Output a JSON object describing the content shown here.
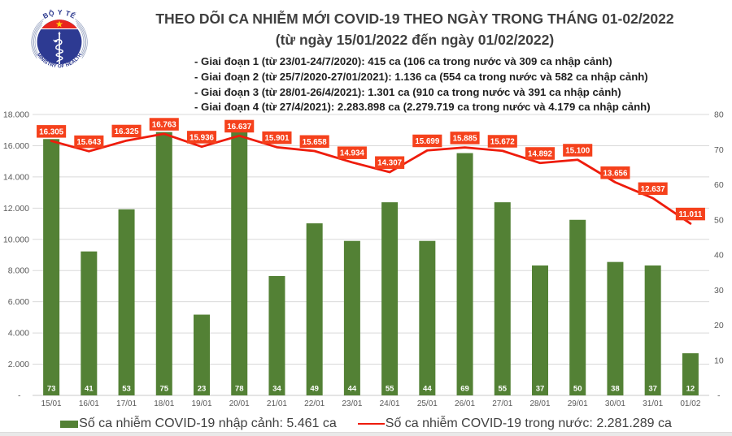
{
  "logo": {
    "top_text": "BỘ Y TẾ",
    "bottom_text": "MINISTRY OF HEALTH"
  },
  "header": {
    "title": "THEO DÕI CA NHIỄM MỚI COVID-19 THEO NGÀY TRONG THÁNG 01-02/2022",
    "subtitle": "(từ ngày 15/01/2022 đến ngày 01/02/2022)",
    "phases": [
      "- Giai đoạn 1 (từ 23/01-24/7/2020): 415 ca (106 ca trong nước và 309 ca nhập cảnh)",
      "- Giai đoạn 2 (từ 25/7/2020-27/01/2021): 1.136 ca (554 ca trong nước và 582 ca nhập cảnh)",
      "- Giai đoạn 3 (từ 28/01-26/4/2021): 1.301 ca (910 ca trong nước và 391 ca nhập cảnh)",
      "- Giai đoạn 4 (từ 27/4/2021): 2.283.898 ca (2.279.719 ca trong nước và 4.179 ca nhập cảnh)"
    ]
  },
  "chart_data": {
    "type": "bar",
    "subtype": "bar+line combo, dual axis",
    "categories": [
      "15/01",
      "16/01",
      "17/01",
      "18/01",
      "19/01",
      "20/01",
      "21/01",
      "22/01",
      "23/01",
      "24/01",
      "25/01",
      "26/01",
      "27/01",
      "28/01",
      "29/01",
      "30/01",
      "31/01",
      "01/02"
    ],
    "series": [
      {
        "name": "Số ca nhiễm COVID-19 nhập cảnh",
        "type": "bar",
        "axis": "right",
        "color": "#538135",
        "values": [
          73,
          41,
          53,
          75,
          23,
          78,
          34,
          49,
          44,
          55,
          44,
          69,
          55,
          37,
          50,
          38,
          37,
          12
        ],
        "value_labels": [
          "73",
          "41",
          "53",
          "75",
          "23",
          "78",
          "34",
          "49",
          "44",
          "55",
          "44",
          "69",
          "55",
          "37",
          "50",
          "38",
          "37",
          "12"
        ]
      },
      {
        "name": "Số ca nhiễm COVID-19 trong nước",
        "type": "line",
        "axis": "left",
        "color": "#ee1c0c",
        "values": [
          16305,
          15643,
          16325,
          16763,
          15936,
          16637,
          15901,
          15658,
          14934,
          14307,
          15699,
          15885,
          15672,
          14892,
          15100,
          13656,
          12637,
          11011
        ],
        "value_labels": [
          "16.305",
          "15.643",
          "16.325",
          "16.763",
          "15.936",
          "16.637",
          "15.901",
          "15.658",
          "14.934",
          "14.307",
          "15.699",
          "15.885",
          "15.672",
          "14.892",
          "15.100",
          "13.656",
          "12.637",
          "11.011"
        ],
        "label_bg": "#f5411c",
        "label_text_color": "#ffffff"
      }
    ],
    "left_axis": {
      "min": 0,
      "max": 18000,
      "step": 2000,
      "tick_labels": [
        "-",
        "2.000",
        "4.000",
        "6.000",
        "8.000",
        "10.000",
        "12.000",
        "14.000",
        "16.000",
        "18.000"
      ]
    },
    "right_axis": {
      "min": 0,
      "max": 80,
      "step": 10,
      "tick_labels": [
        "-",
        "10",
        "20",
        "30",
        "40",
        "50",
        "60",
        "70",
        "80"
      ]
    },
    "grid": true,
    "gridline_color": "#d9d9d9",
    "axis_text_color": "#595959",
    "legend_position": "bottom",
    "title": "THEO DÕI CA NHIỄM MỚI COVID-19 THEO NGÀY TRONG THÁNG 01-02/2022"
  },
  "legend": {
    "items": [
      {
        "swatch": "bar",
        "color": "#538135",
        "label": "Số ca nhiễm COVID-19 nhập cảnh: 5.461 ca"
      },
      {
        "swatch": "line",
        "color": "#ee1c0c",
        "label": "Số ca nhiễm COVID-19 trong nước: 2.281.289 ca"
      }
    ]
  }
}
